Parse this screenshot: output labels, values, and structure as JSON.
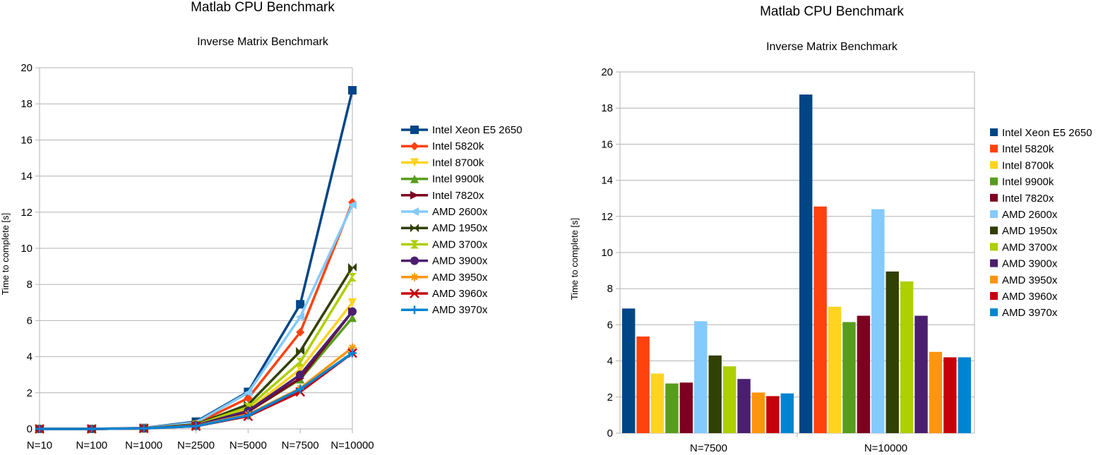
{
  "chart_data": [
    {
      "type": "line",
      "title": "Matlab CPU Benchmark",
      "subtitle": "Inverse Matrix Benchmark",
      "xlabel": "",
      "ylabel": "Time to complete [s]",
      "ylim": [
        0,
        20
      ],
      "yticks": [
        "0",
        "2",
        "4",
        "6",
        "8",
        "10",
        "12",
        "14",
        "16",
        "18",
        "20"
      ],
      "grid": true,
      "legend_position": "right",
      "categories": [
        "N=10",
        "N=100",
        "N=1000",
        "N=2500",
        "N=5000",
        "N=7500",
        "N=10000"
      ],
      "series": [
        {
          "name": "Intel Xeon E5 2650",
          "color": "#004586",
          "marker": "square",
          "values": [
            0,
            0,
            0.05,
            0.4,
            2.05,
            6.9,
            18.75
          ]
        },
        {
          "name": "Intel 5820k",
          "color": "#ff420e",
          "marker": "diamond",
          "values": [
            0,
            0,
            0.04,
            0.3,
            1.7,
            5.35,
            12.55
          ]
        },
        {
          "name": "Intel 8700k",
          "color": "#ffd320",
          "marker": "triangle-down",
          "values": [
            0,
            0,
            0.03,
            0.2,
            1.05,
            3.3,
            7.0
          ]
        },
        {
          "name": "Intel 9900k",
          "color": "#579d1c",
          "marker": "triangle-up",
          "values": [
            0,
            0,
            0.03,
            0.18,
            0.95,
            2.75,
            6.15
          ]
        },
        {
          "name": "Intel 7820x",
          "color": "#7e0021",
          "marker": "triangle-right",
          "values": [
            0,
            0,
            0.03,
            0.18,
            0.95,
            2.8,
            6.5
          ]
        },
        {
          "name": "AMD 2600x",
          "color": "#83caff",
          "marker": "triangle-left",
          "values": [
            0,
            0,
            0.04,
            0.35,
            2.0,
            6.2,
            12.4
          ]
        },
        {
          "name": "AMD 1950x",
          "color": "#314004",
          "marker": "bowtie",
          "values": [
            0,
            0,
            0.03,
            0.25,
            1.35,
            4.3,
            8.95
          ]
        },
        {
          "name": " AMD 3700x",
          "color": "#aecf00",
          "marker": "hourglass",
          "values": [
            0,
            0,
            0.03,
            0.22,
            1.2,
            3.7,
            8.4
          ]
        },
        {
          "name": "AMD 3900x",
          "color": "#4b1f6f",
          "marker": "circle",
          "values": [
            0,
            0,
            0.03,
            0.2,
            1.0,
            3.0,
            6.5
          ]
        },
        {
          "name": "AMD 3950x",
          "color": "#ff950e",
          "marker": "star",
          "values": [
            0,
            0,
            0.03,
            0.16,
            0.8,
            2.25,
            4.5
          ]
        },
        {
          "name": "AMD 3960x",
          "color": "#c5000b",
          "marker": "x",
          "values": [
            0,
            0,
            0.03,
            0.15,
            0.7,
            2.05,
            4.2
          ]
        },
        {
          "name": "AMD 3970x",
          "color": "#0084d1",
          "marker": "plus",
          "values": [
            0,
            0,
            0.03,
            0.15,
            0.75,
            2.2,
            4.2
          ]
        }
      ]
    },
    {
      "type": "bar",
      "title": "Matlab CPU Benchmark",
      "subtitle": "Inverse Matrix Benchmark",
      "xlabel": "",
      "ylabel": "Time to complete [s]",
      "ylim": [
        0,
        20
      ],
      "yticks": [
        "0",
        "2",
        "4",
        "6",
        "8",
        "10",
        "12",
        "14",
        "16",
        "18",
        "20"
      ],
      "grid": true,
      "legend_position": "right",
      "categories": [
        "N=7500",
        "N=10000"
      ],
      "series": [
        {
          "name": "Intel Xeon E5 2650",
          "color": "#004586",
          "values": [
            6.9,
            18.75
          ]
        },
        {
          "name": "Intel 5820k",
          "color": "#ff420e",
          "values": [
            5.35,
            12.55
          ]
        },
        {
          "name": "Intel 8700k",
          "color": "#ffd320",
          "values": [
            3.3,
            7.0
          ]
        },
        {
          "name": "Intel 9900k",
          "color": "#579d1c",
          "values": [
            2.75,
            6.15
          ]
        },
        {
          "name": "Intel 7820x",
          "color": "#7e0021",
          "values": [
            2.8,
            6.5
          ]
        },
        {
          "name": "AMD 2600x",
          "color": "#83caff",
          "values": [
            6.2,
            12.4
          ]
        },
        {
          "name": "AMD 1950x",
          "color": "#314004",
          "values": [
            4.3,
            8.95
          ]
        },
        {
          "name": " AMD 3700x",
          "color": "#aecf00",
          "values": [
            3.7,
            8.4
          ]
        },
        {
          "name": "AMD 3900x",
          "color": "#4b1f6f",
          "values": [
            3.0,
            6.5
          ]
        },
        {
          "name": "AMD 3950x",
          "color": "#ff950e",
          "values": [
            2.25,
            4.5
          ]
        },
        {
          "name": "AMD 3960x",
          "color": "#c5000b",
          "values": [
            2.05,
            4.2
          ]
        },
        {
          "name": "AMD 3970x",
          "color": "#0084d1",
          "values": [
            2.2,
            4.2
          ]
        }
      ]
    }
  ]
}
